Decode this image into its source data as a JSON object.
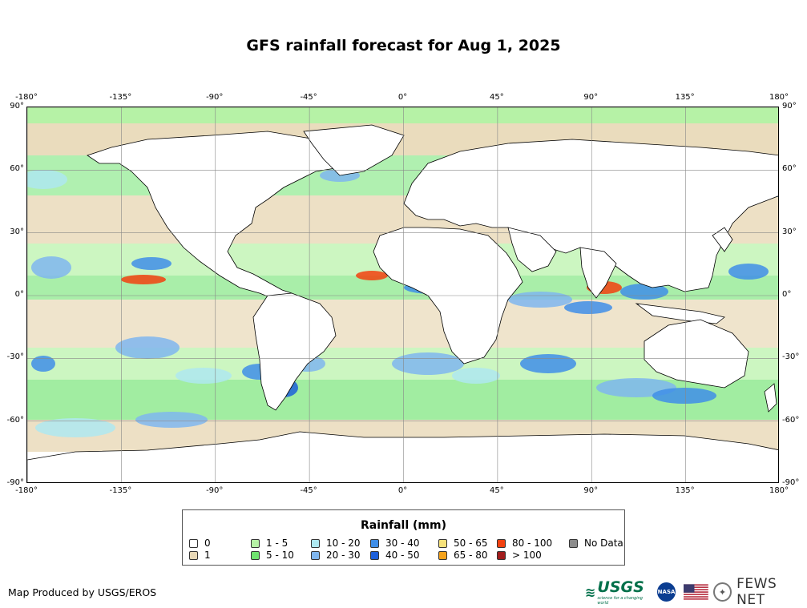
{
  "title": "GFS rainfall forecast for Aug 1, 2025",
  "axes": {
    "x_ticks": [
      "-180°",
      "-135°",
      "-90°",
      "-45°",
      "0°",
      "45°",
      "90°",
      "135°",
      "180°"
    ],
    "y_ticks": [
      "90°",
      "60°",
      "30°",
      "0°",
      "-30°",
      "-60°",
      "-90°"
    ],
    "lon_values": [
      -180,
      -135,
      -90,
      -45,
      0,
      45,
      90,
      135,
      180
    ],
    "lat_values": [
      90,
      60,
      30,
      0,
      -30,
      -60,
      -90
    ]
  },
  "legend": {
    "title": "Rainfall (mm)",
    "items": [
      {
        "label": "0",
        "color": "#ffffff"
      },
      {
        "label": "1",
        "color": "#e8d8b6"
      },
      {
        "label": "1 - 5",
        "color": "#b6f2a6"
      },
      {
        "label": "5 - 10",
        "color": "#6fe36f"
      },
      {
        "label": "10 - 20",
        "color": "#aee8f0"
      },
      {
        "label": "20 - 30",
        "color": "#7fb6ef"
      },
      {
        "label": "30 - 40",
        "color": "#3f8ee8"
      },
      {
        "label": "40 - 50",
        "color": "#1d5fd9"
      },
      {
        "label": "50 - 65",
        "color": "#f7e27a"
      },
      {
        "label": "65 - 80",
        "color": "#f5a21a"
      },
      {
        "label": "80 - 100",
        "color": "#f2410f"
      },
      {
        "label": "> 100",
        "color": "#a11c1c"
      },
      {
        "label": "No Data",
        "color": "#8c8c8c"
      }
    ]
  },
  "credit": "Map Produced by USGS/EROS",
  "logos": {
    "usgs": "USGS",
    "usgs_tagline": "science for a changing world",
    "nasa": "NASA",
    "fews": "FEWS NET"
  }
}
